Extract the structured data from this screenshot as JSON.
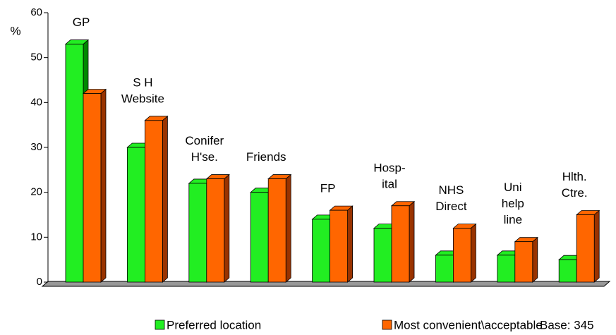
{
  "chart_data": {
    "type": "bar3d",
    "y_axis_label": "%",
    "categories": [
      [
        "GP"
      ],
      [
        "S H",
        "Website"
      ],
      [
        "Conifer",
        "H'se."
      ],
      [
        "Friends"
      ],
      [
        "FP"
      ],
      [
        "Hosp-",
        "ital"
      ],
      [
        "NHS",
        "Direct"
      ],
      [
        "Uni",
        "help",
        "line"
      ],
      [
        "Hlth.",
        "Ctre."
      ]
    ],
    "series": [
      {
        "name": "Preferred location",
        "color": "#22ee22",
        "side_color": "#008800",
        "values": [
          53,
          30,
          22,
          20,
          14,
          12,
          6,
          6,
          5
        ]
      },
      {
        "name": "Most convenient\\acceptable",
        "color": "#ff6600",
        "side_color": "#993300",
        "values": [
          42,
          36,
          23,
          23,
          16,
          17,
          12,
          9,
          15
        ]
      }
    ],
    "note": "Base: 345",
    "ylim": [
      0,
      60
    ],
    "yticks": [
      0,
      10,
      20,
      30,
      40,
      50,
      60
    ]
  }
}
